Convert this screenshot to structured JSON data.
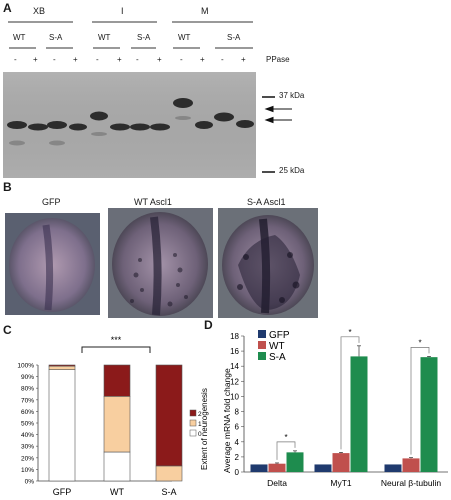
{
  "panels": {
    "A": {
      "label": "A",
      "groups": [
        "XB",
        "I",
        "M"
      ],
      "sub": [
        "WT",
        "S-A"
      ],
      "signs": [
        "-",
        "+"
      ],
      "ppase": "PPase",
      "markers": [
        "37 kDa",
        "25 kDa"
      ]
    },
    "B": {
      "label": "B",
      "titles": [
        "GFP",
        "WT Ascl1",
        "S-A Ascl1"
      ]
    },
    "C": {
      "label": "C",
      "significance": "***",
      "ylabel": "Extent of neurogenesis",
      "legend": [
        "2",
        "1",
        "0"
      ]
    },
    "D": {
      "label": "D",
      "significance": "*"
    }
  },
  "colors": {
    "c_score2": "#8b1a1a",
    "c_score1": "#f8cfa0",
    "c_score0": "#ffffff",
    "d_gfp": "#1f3a6e",
    "d_wt": "#c0504d",
    "d_sa": "#1e8c4e"
  },
  "chart_data": [
    {
      "panel": "C",
      "type": "bar",
      "stacked": true,
      "categories": [
        "GFP",
        "WT",
        "S-A"
      ],
      "series": [
        {
          "name": "0",
          "values": [
            96,
            25,
            0
          ]
        },
        {
          "name": "1",
          "values": [
            3,
            48,
            13
          ]
        },
        {
          "name": "2",
          "values": [
            1,
            27,
            87
          ]
        }
      ],
      "ylim": [
        0,
        100
      ],
      "yticks": [
        "0%",
        "10%",
        "20%",
        "30%",
        "40%",
        "50%",
        "60%",
        "70%",
        "80%",
        "90%",
        "100%"
      ],
      "ylabel": "Extent of neurogenesis",
      "legend_position": "right"
    },
    {
      "panel": "D",
      "type": "bar",
      "categories": [
        "Delta",
        "MyT1",
        "Neural β-tubulin"
      ],
      "series": [
        {
          "name": "GFP",
          "values": [
            1,
            1,
            1
          ],
          "errors": [
            0,
            0,
            0
          ]
        },
        {
          "name": "WT",
          "values": [
            1.1,
            2.5,
            1.8
          ],
          "errors": [
            0.1,
            0.1,
            0.1
          ]
        },
        {
          "name": "S-A",
          "values": [
            2.6,
            15.3,
            15.2
          ],
          "errors": [
            0.2,
            1.4,
            0.1
          ]
        }
      ],
      "ylim": [
        0,
        18
      ],
      "yticks": [
        "0",
        "2",
        "4",
        "6",
        "8",
        "10",
        "12",
        "14",
        "16",
        "18"
      ],
      "ylabel": "Average mRNA fold change",
      "legend_position": "top-left"
    }
  ]
}
